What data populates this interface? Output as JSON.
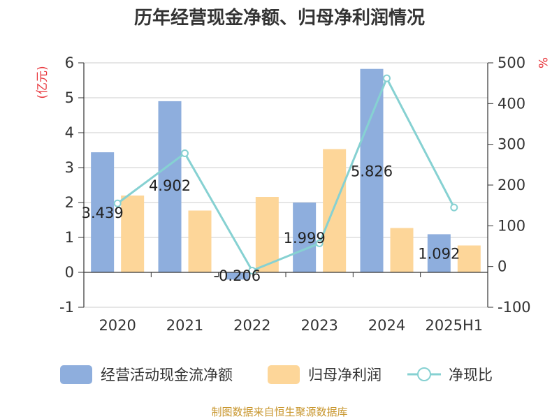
{
  "chart_data": {
    "type": "bar",
    "title": "历年经营现金净额、归母净利润情况",
    "categories": [
      "2020",
      "2021",
      "2022",
      "2023",
      "2024",
      "2025H1"
    ],
    "left_axis": {
      "unit_label": "(亿元)",
      "ylim": [
        -1,
        6
      ],
      "ticks": [
        "-1",
        "0",
        "1",
        "2",
        "3",
        "4",
        "5",
        "6"
      ]
    },
    "right_axis": {
      "unit_label": "%",
      "ylim": [
        -100,
        500
      ],
      "ticks": [
        "-100",
        "0",
        "100",
        "200",
        "300",
        "400",
        "500"
      ]
    },
    "series": [
      {
        "name": "经营活动现金流净额",
        "kind": "bar",
        "axis": "left",
        "color": "#8eaedd",
        "values": [
          3.439,
          4.902,
          -0.206,
          1.999,
          5.826,
          1.092
        ],
        "labels": [
          "3.439",
          "4.902",
          "-0.206",
          "1.999",
          "5.826",
          "1.092"
        ]
      },
      {
        "name": "归母净利润",
        "kind": "bar",
        "axis": "left",
        "color": "#fdd699",
        "values": [
          2.2,
          1.77,
          2.16,
          3.53,
          1.27,
          0.77
        ]
      },
      {
        "name": "净现比",
        "kind": "line",
        "axis": "right",
        "color": "#86d1d2",
        "values": [
          155,
          278,
          -10,
          57,
          462,
          145
        ]
      }
    ],
    "grid": true,
    "legend_position": "bottom"
  },
  "source_text": "制图数据来自恒生聚源数据库",
  "colors": {
    "axis_unit": "#e8343a",
    "source": "#c8962d",
    "grid": "#cccccc",
    "axis": "#333333"
  }
}
